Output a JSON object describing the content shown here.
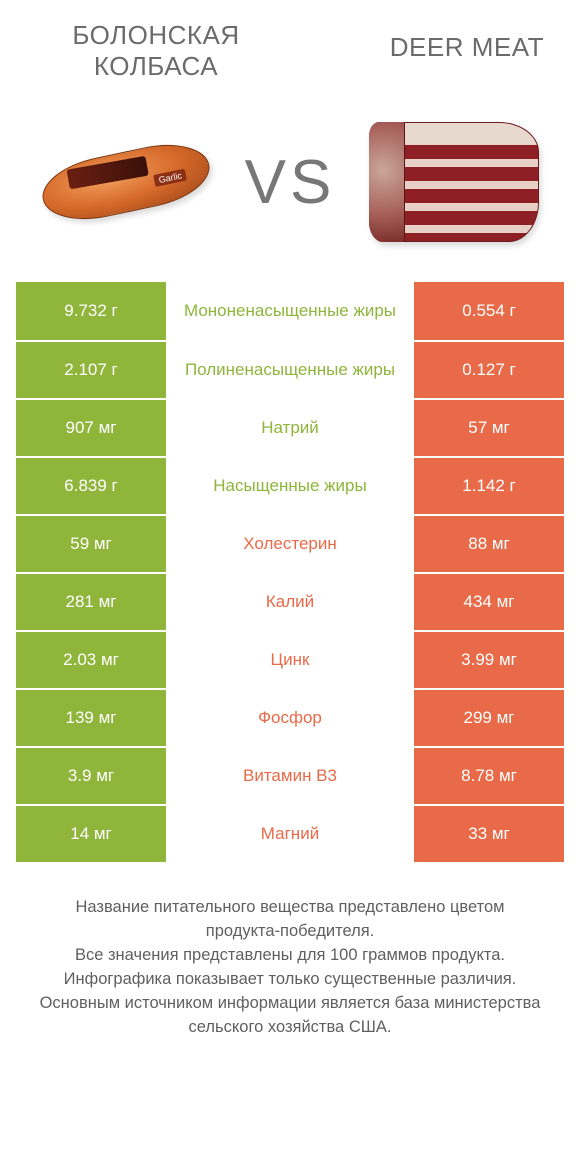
{
  "colors": {
    "green": "#8fb53b",
    "orange": "#e86a48",
    "mid_text_green": "#8fb53b",
    "mid_text_orange": "#e86a48",
    "header_text": "#6b6b6b",
    "vs_text": "#777777",
    "footer_text": "#5f5f5f"
  },
  "header": {
    "left_title": "БОЛОНСКАЯ КОЛБАСА",
    "right_title": "DEER MEAT",
    "vs": "VS"
  },
  "rows": [
    {
      "left": "9.732 г",
      "mid": "Мононенасыщенные жиры",
      "right": "0.554 г",
      "winner": "left"
    },
    {
      "left": "2.107 г",
      "mid": "Полиненасыщенные жиры",
      "right": "0.127 г",
      "winner": "left"
    },
    {
      "left": "907 мг",
      "mid": "Натрий",
      "right": "57 мг",
      "winner": "left"
    },
    {
      "left": "6.839 г",
      "mid": "Насыщенные жиры",
      "right": "1.142 г",
      "winner": "left"
    },
    {
      "left": "59 мг",
      "mid": "Холестерин",
      "right": "88 мг",
      "winner": "right"
    },
    {
      "left": "281 мг",
      "mid": "Калий",
      "right": "434 мг",
      "winner": "right"
    },
    {
      "left": "2.03 мг",
      "mid": "Цинк",
      "right": "3.99 мг",
      "winner": "right"
    },
    {
      "left": "139 мг",
      "mid": "Фосфор",
      "right": "299 мг",
      "winner": "right"
    },
    {
      "left": "3.9 мг",
      "mid": "Витамин B3",
      "right": "8.78 мг",
      "winner": "right"
    },
    {
      "left": "14 мг",
      "mid": "Магний",
      "right": "33 мг",
      "winner": "right"
    }
  ],
  "footer": {
    "line1": "Название питательного вещества представлено цветом продукта-победителя.",
    "line2": "Все значения представлены для 100 граммов продукта.",
    "line3": "Инфографика показывает только существенные различия.",
    "line4": "Основным источником информации является база министерства сельского хозяйства США."
  }
}
